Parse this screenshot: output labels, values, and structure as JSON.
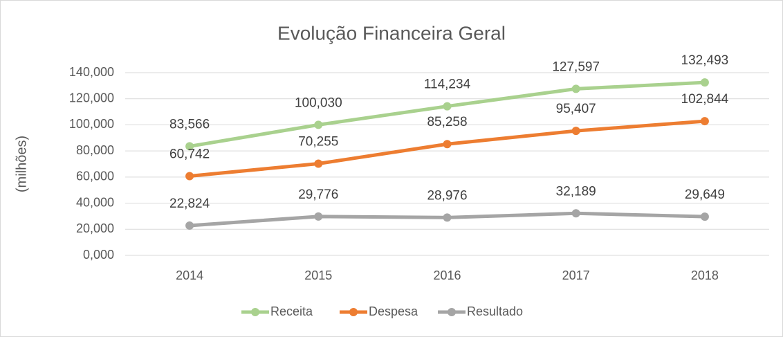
{
  "chart_data": {
    "type": "line",
    "title": "Evolução Financeira Geral",
    "y_label": "(milhões)",
    "categories": [
      "2014",
      "2015",
      "2016",
      "2017",
      "2018"
    ],
    "series": [
      {
        "name": "Receita",
        "color": "#a9d18e",
        "values": [
          83566,
          100030,
          114234,
          127597,
          132493
        ],
        "value_labels": [
          "83,566",
          "100,030",
          "114,234",
          "127,597",
          "132,493"
        ]
      },
      {
        "name": "Despesa",
        "color": "#ed7d31",
        "values": [
          60742,
          70255,
          85258,
          95407,
          102844
        ],
        "value_labels": [
          "60,742",
          "70,255",
          "85,258",
          "95,407",
          "102,844"
        ]
      },
      {
        "name": "Resultado",
        "color": "#a5a5a5",
        "values": [
          22824,
          29776,
          28976,
          32189,
          29649
        ],
        "value_labels": [
          "22,824",
          "29,776",
          "28,976",
          "32,189",
          "29,649"
        ]
      }
    ],
    "ylim": [
      0,
      140000
    ],
    "yticks": [
      {
        "value": 0,
        "label": "0,000"
      },
      {
        "value": 20000,
        "label": "20,000"
      },
      {
        "value": 40000,
        "label": "40,000"
      },
      {
        "value": 60000,
        "label": "60,000"
      },
      {
        "value": 80000,
        "label": "80,000"
      },
      {
        "value": 100000,
        "label": "100,000"
      },
      {
        "value": 120000,
        "label": "120,000"
      },
      {
        "value": 140000,
        "label": "140,000"
      }
    ],
    "grid": true,
    "legend": "bottom"
  }
}
